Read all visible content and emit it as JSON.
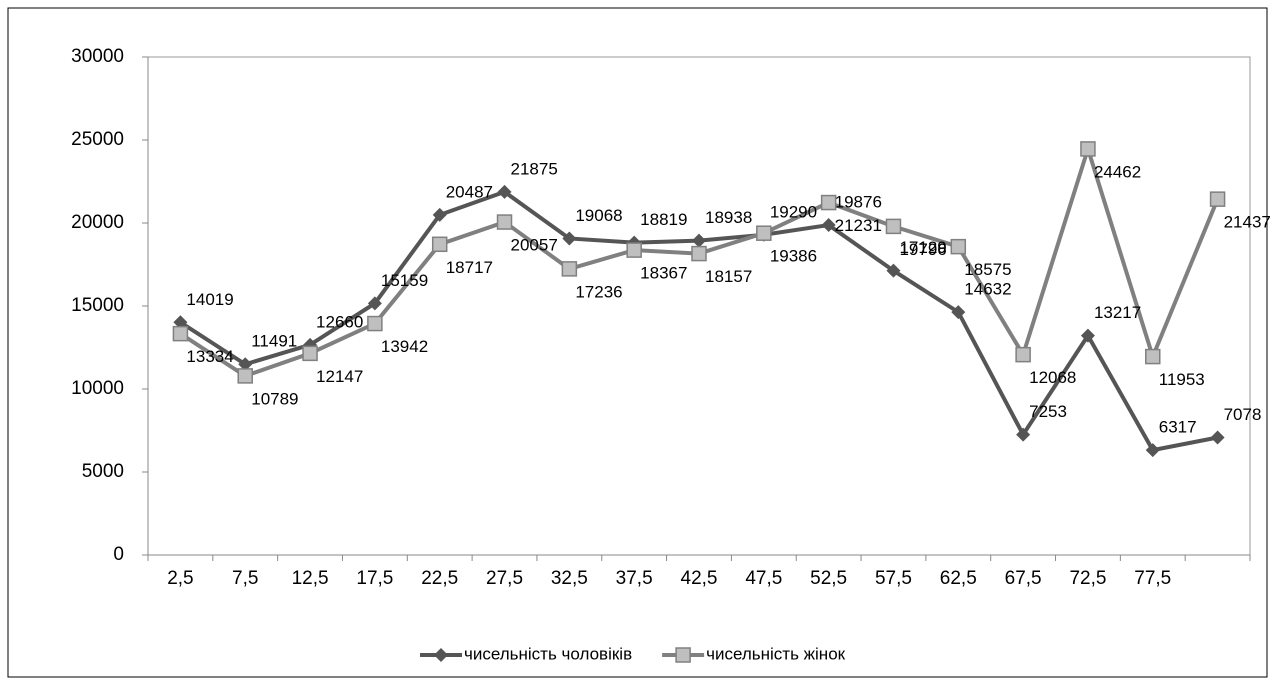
{
  "chart_data": {
    "type": "line",
    "categories": [
      "2,5",
      "7,5",
      "12,5",
      "17,5",
      "22,5",
      "27,5",
      "32,5",
      "37,5",
      "42,5",
      "47,5",
      "52,5",
      "57,5",
      "62,5",
      "67,5",
      "72,5",
      "77,5",
      null
    ],
    "series": [
      {
        "name": "чисельність чоловіків",
        "color": "#555555",
        "marker": "diamond",
        "values": [
          14019,
          11491,
          12660,
          15159,
          20487,
          21875,
          19068,
          18819,
          18938,
          19290,
          19876,
          17129,
          14632,
          7253,
          13217,
          6317,
          7078
        ]
      },
      {
        "name": "чисельність жінок",
        "color": "#808080",
        "marker": "square",
        "values": [
          13334,
          10789,
          12147,
          13942,
          18717,
          20057,
          17236,
          18367,
          18157,
          19386,
          21231,
          19796,
          18575,
          12068,
          24462,
          11953,
          21437
        ]
      }
    ],
    "ylim": [
      0,
      30000
    ],
    "yticks": [
      0,
      5000,
      10000,
      15000,
      20000,
      25000,
      30000
    ],
    "legend": "bottom"
  }
}
